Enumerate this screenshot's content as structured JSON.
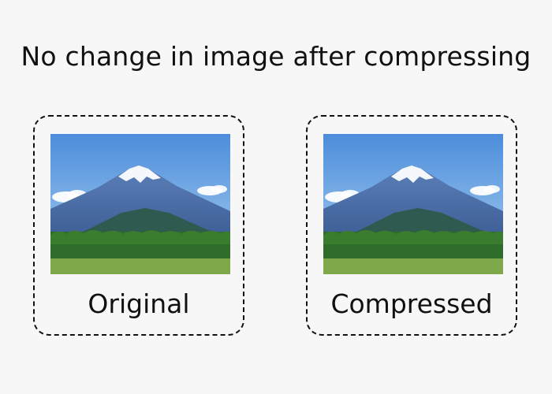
{
  "title": "No change in image after compressing",
  "cards": [
    {
      "label": "Original",
      "image": "mountain-landscape-photo"
    },
    {
      "label": "Compressed",
      "image": "mountain-landscape-photo"
    }
  ],
  "colors": {
    "sky_top": "#4f8fdc",
    "sky_bottom": "#a9d0f0",
    "mountain": "#4a6ea8",
    "snow": "#f4f7fb",
    "hill": "#2f5a4f",
    "trees": "#2f6b2a",
    "field": "#7fa84a",
    "border": "#111111",
    "background": "#f7f7f7"
  }
}
